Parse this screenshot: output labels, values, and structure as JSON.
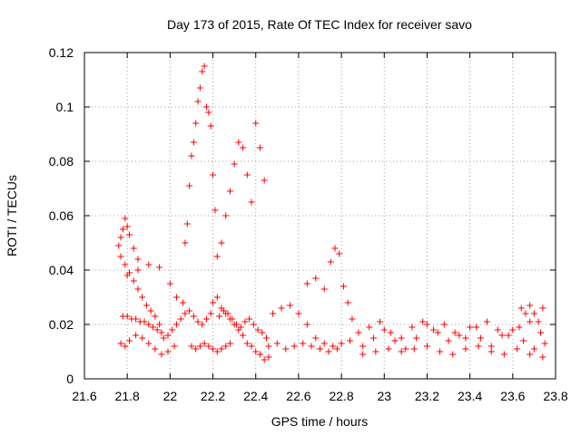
{
  "chart_data": {
    "type": "scatter",
    "title": "Day 173 of 2015, Rate Of TEC Index for receiver savo",
    "xlabel": "GPS time / hours",
    "ylabel": "ROTI / TECUs",
    "xlim": [
      21.6,
      23.8
    ],
    "ylim": [
      0,
      0.12
    ],
    "xticks": [
      "21.6",
      "21.8",
      "22",
      "22.2",
      "22.4",
      "22.6",
      "22.8",
      "23",
      "23.2",
      "23.4",
      "23.6",
      "23.8"
    ],
    "yticks": [
      "0",
      "0.02",
      "0.04",
      "0.06",
      "0.08",
      "0.1",
      "0.12"
    ],
    "grid": true,
    "marker": "+",
    "color": "#ff0000",
    "x": [
      21.76,
      21.77,
      21.78,
      21.79,
      21.8,
      21.81,
      21.83,
      21.85,
      21.77,
      21.79,
      21.81,
      21.83,
      21.85,
      21.87,
      21.89,
      21.91,
      21.93,
      21.95,
      21.78,
      21.8,
      21.82,
      21.84,
      21.86,
      21.88,
      21.9,
      21.92,
      21.94,
      21.96,
      21.77,
      21.79,
      21.81,
      21.84,
      21.87,
      21.9,
      21.93,
      21.96,
      21.99,
      22.02,
      21.8,
      21.85,
      21.9,
      21.95,
      22.0,
      22.03,
      22.06,
      21.97,
      21.99,
      22.01,
      22.03,
      22.05,
      22.07,
      22.09,
      22.11,
      22.13,
      22.15,
      22.17,
      22.19,
      22.07,
      22.08,
      22.09,
      22.1,
      22.11,
      22.12,
      22.13,
      22.14,
      22.15,
      22.16,
      22.17,
      22.18,
      22.19,
      22.2,
      22.21,
      22.1,
      22.12,
      22.14,
      22.16,
      22.18,
      22.2,
      22.22,
      22.24,
      22.26,
      22.28,
      22.22,
      22.24,
      22.26,
      22.28,
      22.3,
      22.32,
      22.34,
      22.36,
      22.38,
      22.4,
      22.42,
      22.44,
      22.2,
      22.22,
      22.24,
      22.26,
      22.28,
      22.3,
      22.32,
      22.34,
      22.36,
      22.38,
      22.4,
      22.42,
      22.44,
      22.46,
      22.23,
      22.25,
      22.27,
      22.29,
      22.31,
      22.33,
      22.35,
      22.37,
      22.39,
      22.41,
      22.43,
      22.45,
      22.46,
      22.5,
      22.54,
      22.58,
      22.62,
      22.66,
      22.7,
      22.74,
      22.78,
      22.48,
      22.52,
      22.56,
      22.6,
      22.64,
      22.68,
      22.72,
      22.76,
      22.8,
      22.84,
      22.64,
      22.68,
      22.72,
      22.75,
      22.77,
      22.79,
      22.81,
      22.83,
      22.85,
      22.9,
      22.95,
      23.0,
      23.05,
      23.1,
      23.15,
      23.2,
      23.25,
      23.3,
      23.35,
      23.4,
      23.45,
      23.5,
      23.55,
      23.6,
      23.65,
      23.7,
      23.75,
      22.88,
      22.93,
      22.98,
      23.03,
      23.08,
      23.13,
      23.18,
      23.23,
      23.28,
      23.33,
      23.38,
      23.43,
      23.48,
      23.53,
      23.58,
      23.63,
      23.68,
      23.73,
      22.9,
      22.96,
      23.02,
      23.08,
      23.14,
      23.2,
      23.26,
      23.32,
      23.38,
      23.44,
      23.5,
      23.56,
      23.62,
      23.68,
      23.74,
      23.64,
      23.66,
      23.68,
      23.7,
      23.72,
      23.74
    ],
    "y": [
      0.049,
      0.052,
      0.055,
      0.059,
      0.056,
      0.053,
      0.048,
      0.044,
      0.045,
      0.042,
      0.039,
      0.036,
      0.033,
      0.03,
      0.027,
      0.025,
      0.023,
      0.02,
      0.023,
      0.023,
      0.022,
      0.022,
      0.021,
      0.021,
      0.02,
      0.019,
      0.018,
      0.017,
      0.013,
      0.012,
      0.014,
      0.016,
      0.015,
      0.013,
      0.011,
      0.009,
      0.01,
      0.012,
      0.038,
      0.04,
      0.042,
      0.041,
      0.035,
      0.03,
      0.028,
      0.015,
      0.016,
      0.018,
      0.02,
      0.022,
      0.024,
      0.025,
      0.023,
      0.021,
      0.02,
      0.022,
      0.024,
      0.05,
      0.057,
      0.071,
      0.082,
      0.087,
      0.094,
      0.102,
      0.107,
      0.113,
      0.115,
      0.1,
      0.098,
      0.093,
      0.075,
      0.062,
      0.012,
      0.011,
      0.012,
      0.013,
      0.012,
      0.011,
      0.01,
      0.011,
      0.012,
      0.013,
      0.045,
      0.05,
      0.06,
      0.069,
      0.079,
      0.087,
      0.085,
      0.075,
      0.065,
      0.094,
      0.085,
      0.073,
      0.028,
      0.03,
      0.026,
      0.024,
      0.022,
      0.02,
      0.018,
      0.016,
      0.013,
      0.012,
      0.01,
      0.009,
      0.007,
      0.008,
      0.023,
      0.025,
      0.024,
      0.022,
      0.02,
      0.019,
      0.021,
      0.022,
      0.02,
      0.018,
      0.017,
      0.015,
      0.012,
      0.013,
      0.011,
      0.012,
      0.013,
      0.012,
      0.011,
      0.01,
      0.011,
      0.024,
      0.026,
      0.027,
      0.024,
      0.02,
      0.015,
      0.013,
      0.012,
      0.013,
      0.014,
      0.035,
      0.037,
      0.033,
      0.043,
      0.048,
      0.046,
      0.034,
      0.028,
      0.022,
      0.012,
      0.015,
      0.018,
      0.014,
      0.011,
      0.015,
      0.02,
      0.017,
      0.014,
      0.016,
      0.019,
      0.015,
      0.012,
      0.016,
      0.018,
      0.014,
      0.011,
      0.013,
      0.017,
      0.019,
      0.021,
      0.017,
      0.015,
      0.019,
      0.021,
      0.018,
      0.02,
      0.017,
      0.015,
      0.019,
      0.021,
      0.018,
      0.016,
      0.019,
      0.021,
      0.017,
      0.009,
      0.01,
      0.011,
      0.01,
      0.011,
      0.012,
      0.01,
      0.009,
      0.011,
      0.012,
      0.01,
      0.009,
      0.011,
      0.009,
      0.008,
      0.026,
      0.024,
      0.027,
      0.024,
      0.021,
      0.026
    ]
  }
}
